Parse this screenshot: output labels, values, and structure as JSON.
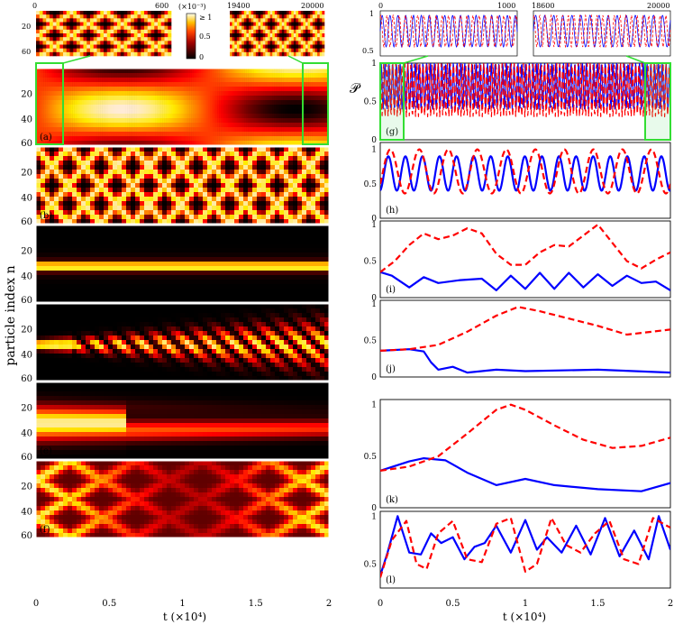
{
  "figure": {
    "y_axis_label": "particle index n",
    "x_axis_label": "t (×10⁴)",
    "x_ticks_bottom": [
      "0",
      "0.5",
      "1",
      "1.5",
      "2"
    ],
    "colorbar": {
      "exponent_label": "(×10⁻³)",
      "tick_labels": [
        "≥ 1",
        "0.5",
        "0"
      ]
    },
    "zoom_left_a": {
      "tick_start": "0",
      "tick_end": "600",
      "y_ticks": [
        "20",
        "60"
      ]
    },
    "zoom_right_a": {
      "tick_start": "19400",
      "tick_end": "20000"
    },
    "zoom_left_g": {
      "tick_start": "0",
      "tick_end": "1000",
      "y_ticks": [
        "1",
        "0.5"
      ]
    },
    "zoom_right_g": {
      "tick_start": "18600",
      "tick_end": "20000"
    },
    "p_symbol": "𝒫",
    "panel_labels_left": [
      "(a)",
      "(b)",
      "(c)",
      "(d)",
      "(e)",
      "(f)"
    ],
    "panel_labels_right": [
      "(g)",
      "(h)",
      "(i)",
      "(j)",
      "(k)",
      "(l)"
    ],
    "left_y_ticks": [
      "20",
      "40",
      "60"
    ],
    "right_y_ticks_g": [
      "1",
      "0.5",
      "0"
    ],
    "right_y_ticks": [
      "1",
      "0.5",
      "0"
    ],
    "colors": {
      "solid_series": "#0000ff",
      "dashed_series": "#ff0000",
      "zoom_box": "#33dd33"
    }
  },
  "chart_data": [
    {
      "panel": "(a)",
      "type": "heatmap",
      "x_range": [
        0,
        2
      ],
      "y_range": [
        0,
        60
      ],
      "pattern": "rapid periodic oscillation",
      "colormap": "hot"
    },
    {
      "panel": "(b)",
      "type": "heatmap",
      "x_range": [
        0,
        2
      ],
      "y_range": [
        0,
        60
      ],
      "pattern": "periodic diamond lattice, period ≈ 0.22",
      "colormap": "hot"
    },
    {
      "panel": "(c)",
      "type": "heatmap",
      "x_range": [
        0,
        2
      ],
      "y_range": [
        0,
        60
      ],
      "pattern": "localized band near n ≈ 32",
      "colormap": "hot"
    },
    {
      "panel": "(d)",
      "type": "heatmap",
      "x_range": [
        0,
        2
      ],
      "y_range": [
        0,
        60
      ],
      "pattern": "localized band breaking up, filaments n ≈ 25–40",
      "colormap": "hot"
    },
    {
      "panel": "(e)",
      "type": "heatmap",
      "x_range": [
        0,
        2
      ],
      "y_range": [
        0,
        60
      ],
      "pattern": "broad band n ≈ 20–45, stripes after t ≈ 0.6",
      "colormap": "hot"
    },
    {
      "panel": "(f)",
      "type": "heatmap",
      "x_range": [
        0,
        2
      ],
      "y_range": [
        0,
        60
      ],
      "pattern": "irregular diamond pattern",
      "colormap": "hot"
    },
    {
      "panel": "(g)",
      "type": "line",
      "x_range": [
        0,
        2
      ],
      "ylim": [
        0,
        1
      ],
      "series": [
        {
          "style": "solid",
          "x": [
            0,
            0.5,
            1,
            1.5,
            2
          ],
          "y": [
            0.6,
            0.8,
            0.6,
            0.8,
            0.6
          ],
          "band": [
            0.4,
            1.0
          ]
        },
        {
          "style": "dashed",
          "x": [
            0,
            0.5,
            1,
            1.5,
            2
          ],
          "y": [
            0.7,
            0.8,
            0.7,
            0.8,
            0.7
          ],
          "band": [
            0.3,
            1.0
          ]
        }
      ]
    },
    {
      "panel": "(h)",
      "type": "line",
      "x_range": [
        0,
        2
      ],
      "ylim": [
        0,
        1.1
      ],
      "series": [
        {
          "style": "solid",
          "mean": 0.65,
          "amplitude": 0.25,
          "cycles": 17
        },
        {
          "style": "dashed",
          "mean": 0.68,
          "amplitude": 0.32,
          "cycles": 10
        }
      ]
    },
    {
      "panel": "(i)",
      "type": "line",
      "x_range": [
        0,
        2
      ],
      "ylim": [
        0,
        1.05
      ],
      "series": [
        {
          "style": "solid",
          "x": [
            0,
            0.08,
            0.2,
            0.3,
            0.4,
            0.55,
            0.7,
            0.8,
            0.9,
            1.0,
            1.1,
            1.2,
            1.3,
            1.4,
            1.5,
            1.6,
            1.7,
            1.8,
            1.9,
            2.0
          ],
          "y": [
            0.35,
            0.3,
            0.14,
            0.28,
            0.2,
            0.24,
            0.26,
            0.1,
            0.3,
            0.12,
            0.34,
            0.12,
            0.34,
            0.14,
            0.32,
            0.16,
            0.3,
            0.2,
            0.22,
            0.1
          ]
        },
        {
          "style": "dashed",
          "x": [
            0,
            0.1,
            0.2,
            0.3,
            0.4,
            0.5,
            0.6,
            0.7,
            0.8,
            0.9,
            1.0,
            1.1,
            1.2,
            1.3,
            1.4,
            1.5,
            1.6,
            1.7,
            1.8,
            1.9,
            2.0
          ],
          "y": [
            0.35,
            0.5,
            0.72,
            0.88,
            0.8,
            0.85,
            0.95,
            0.88,
            0.6,
            0.45,
            0.45,
            0.62,
            0.72,
            0.7,
            0.85,
            1.0,
            0.75,
            0.5,
            0.4,
            0.52,
            0.62
          ]
        }
      ]
    },
    {
      "panel": "(j)",
      "type": "line",
      "x_range": [
        0,
        2
      ],
      "ylim": [
        0,
        1.05
      ],
      "series": [
        {
          "style": "solid",
          "x": [
            0,
            0.2,
            0.3,
            0.35,
            0.4,
            0.5,
            0.6,
            0.8,
            1.0,
            1.5,
            2.0
          ],
          "y": [
            0.36,
            0.38,
            0.35,
            0.2,
            0.1,
            0.14,
            0.06,
            0.1,
            0.08,
            0.1,
            0.06
          ]
        },
        {
          "style": "dashed",
          "x": [
            0,
            0.2,
            0.4,
            0.6,
            0.8,
            0.95,
            1.1,
            1.3,
            1.5,
            1.7,
            2.0
          ],
          "y": [
            0.36,
            0.38,
            0.44,
            0.62,
            0.84,
            0.96,
            0.9,
            0.8,
            0.7,
            0.58,
            0.65
          ]
        }
      ]
    },
    {
      "panel": "(k)",
      "type": "line",
      "x_range": [
        0,
        2
      ],
      "ylim": [
        0,
        1.05
      ],
      "series": [
        {
          "style": "solid",
          "x": [
            0,
            0.2,
            0.3,
            0.45,
            0.6,
            0.8,
            1.0,
            1.2,
            1.5,
            1.8,
            2.0
          ],
          "y": [
            0.36,
            0.45,
            0.48,
            0.46,
            0.34,
            0.22,
            0.28,
            0.22,
            0.18,
            0.16,
            0.24
          ]
        },
        {
          "style": "dashed",
          "x": [
            0,
            0.2,
            0.4,
            0.6,
            0.8,
            0.9,
            1.0,
            1.2,
            1.4,
            1.6,
            1.8,
            2.0
          ],
          "y": [
            0.36,
            0.4,
            0.5,
            0.72,
            0.95,
            1.0,
            0.95,
            0.8,
            0.66,
            0.58,
            0.6,
            0.68
          ]
        }
      ]
    },
    {
      "panel": "(l)",
      "type": "line",
      "x_range": [
        0,
        2
      ],
      "ylim": [
        0.25,
        1.05
      ],
      "series": [
        {
          "style": "solid",
          "x": [
            0,
            0.05,
            0.12,
            0.2,
            0.28,
            0.35,
            0.42,
            0.5,
            0.58,
            0.65,
            0.72,
            0.8,
            0.9,
            1.0,
            1.08,
            1.15,
            1.25,
            1.35,
            1.45,
            1.55,
            1.65,
            1.75,
            1.85,
            1.92,
            2.0
          ],
          "y": [
            0.38,
            0.62,
            1.0,
            0.62,
            0.6,
            0.82,
            0.72,
            0.78,
            0.55,
            0.68,
            0.72,
            0.9,
            0.62,
            0.96,
            0.65,
            0.78,
            0.62,
            0.9,
            0.6,
            0.98,
            0.58,
            0.85,
            0.55,
            1.0,
            0.65
          ]
        },
        {
          "style": "dashed",
          "x": [
            0,
            0.08,
            0.18,
            0.25,
            0.32,
            0.4,
            0.5,
            0.6,
            0.7,
            0.8,
            0.9,
            1.0,
            1.08,
            1.18,
            1.28,
            1.38,
            1.48,
            1.58,
            1.68,
            1.78,
            1.88,
            2.0
          ],
          "y": [
            0.36,
            0.75,
            0.95,
            0.5,
            0.45,
            0.82,
            0.95,
            0.55,
            0.52,
            0.92,
            0.98,
            0.42,
            0.5,
            0.98,
            0.7,
            0.62,
            0.82,
            0.95,
            0.55,
            0.5,
            0.98,
            0.88
          ]
        }
      ]
    }
  ]
}
